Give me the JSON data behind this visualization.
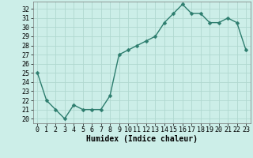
{
  "x": [
    0,
    1,
    2,
    3,
    4,
    5,
    6,
    7,
    8,
    9,
    10,
    11,
    12,
    13,
    14,
    15,
    16,
    17,
    18,
    19,
    20,
    21,
    22,
    23
  ],
  "values": [
    25,
    22,
    21,
    20,
    21.5,
    21,
    21,
    21,
    22.5,
    27,
    27.5,
    28,
    28.5,
    29,
    30.5,
    31.5,
    32.5,
    31.5,
    31.5,
    30.5,
    30.5,
    31,
    30.5,
    27.5
  ],
  "line_color": "#2d7d6e",
  "marker_color": "#2d7d6e",
  "bg_color": "#cceee8",
  "grid_color": "#b0d8d0",
  "xlabel": "Humidex (Indice chaleur)",
  "ylim": [
    19.5,
    32.8
  ],
  "xlim": [
    -0.5,
    23.5
  ],
  "yticks": [
    20,
    21,
    22,
    23,
    24,
    25,
    26,
    27,
    28,
    29,
    30,
    31,
    32
  ],
  "xticks": [
    0,
    1,
    2,
    3,
    4,
    5,
    6,
    7,
    8,
    9,
    10,
    11,
    12,
    13,
    14,
    15,
    16,
    17,
    18,
    19,
    20,
    21,
    22,
    23
  ],
  "xlabel_fontsize": 7,
  "tick_fontsize": 6,
  "line_width": 1.0,
  "marker_size": 2.5
}
